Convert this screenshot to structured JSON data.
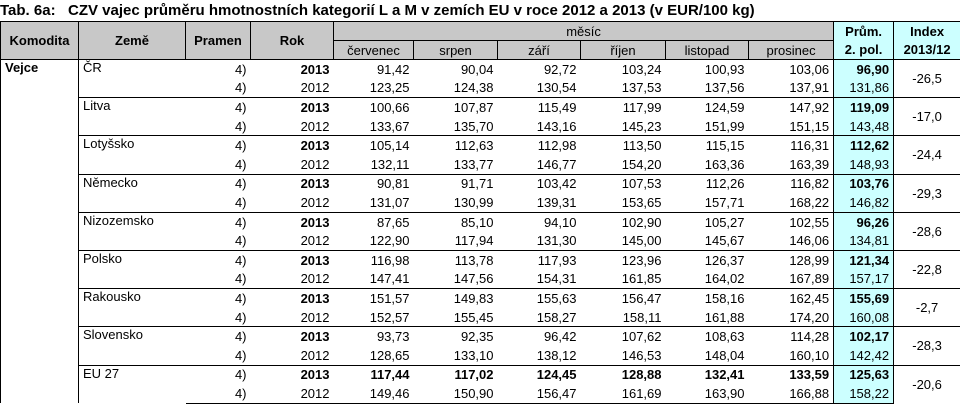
{
  "title": {
    "label": "Tab. 6a:",
    "text": "CZV vajec průměru hmotnostních kategorií L a M v zemích EU v roce 2012 a 2013 (v EUR/100 kg)"
  },
  "header": {
    "komodita": "Komodita",
    "zeme": "Země",
    "pramen": "Pramen",
    "rok": "Rok",
    "mesic": "měsíc",
    "months": [
      "červenec",
      "srpen",
      "září",
      "říjen",
      "listopad",
      "prosinec"
    ],
    "prum": [
      "Prům.",
      "2. pol."
    ],
    "index": [
      "Index",
      "2013/12"
    ]
  },
  "table": {
    "komodita": "Vejce",
    "groups": [
      {
        "country": "ČR",
        "index": "-26,5",
        "rows": [
          {
            "pramen": "4)",
            "rok": "2013",
            "values": [
              "91,42",
              "90,04",
              "92,72",
              "103,24",
              "100,93",
              "103,06"
            ],
            "avg": "96,90"
          },
          {
            "pramen": "4)",
            "rok": "2012",
            "values": [
              "123,25",
              "124,38",
              "130,54",
              "137,53",
              "137,56",
              "137,91"
            ],
            "avg": "131,86"
          }
        ]
      },
      {
        "country": "Litva",
        "index": "-17,0",
        "rows": [
          {
            "pramen": "4)",
            "rok": "2013",
            "values": [
              "100,66",
              "107,87",
              "115,49",
              "117,99",
              "124,59",
              "147,92"
            ],
            "avg": "119,09"
          },
          {
            "pramen": "4)",
            "rok": "2012",
            "values": [
              "133,67",
              "135,70",
              "143,16",
              "145,23",
              "151,99",
              "151,15"
            ],
            "avg": "143,48"
          }
        ]
      },
      {
        "country": "Lotyšsko",
        "index": "-24,4",
        "rows": [
          {
            "pramen": "4)",
            "rok": "2013",
            "values": [
              "105,14",
              "112,63",
              "112,98",
              "113,50",
              "115,15",
              "116,31"
            ],
            "avg": "112,62"
          },
          {
            "pramen": "4)",
            "rok": "2012",
            "values": [
              "132,11",
              "133,77",
              "146,77",
              "154,20",
              "163,36",
              "163,39"
            ],
            "avg": "148,93"
          }
        ]
      },
      {
        "country": "Německo",
        "index": "-29,3",
        "rows": [
          {
            "pramen": "4)",
            "rok": "2013",
            "values": [
              "90,81",
              "91,71",
              "103,42",
              "107,53",
              "112,26",
              "116,82"
            ],
            "avg": "103,76"
          },
          {
            "pramen": "4)",
            "rok": "2012",
            "values": [
              "131,07",
              "130,99",
              "139,31",
              "153,65",
              "157,71",
              "168,22"
            ],
            "avg": "146,82"
          }
        ]
      },
      {
        "country": "Nizozemsko",
        "index": "-28,6",
        "rows": [
          {
            "pramen": "4)",
            "rok": "2013",
            "values": [
              "87,65",
              "85,10",
              "94,10",
              "102,90",
              "105,27",
              "102,55"
            ],
            "avg": "96,26"
          },
          {
            "pramen": "4)",
            "rok": "2012",
            "values": [
              "122,90",
              "117,94",
              "131,30",
              "145,00",
              "145,67",
              "146,06"
            ],
            "avg": "134,81"
          }
        ]
      },
      {
        "country": "Polsko",
        "index": "-22,8",
        "rows": [
          {
            "pramen": "4)",
            "rok": "2013",
            "values": [
              "116,98",
              "113,78",
              "117,93",
              "123,96",
              "126,37",
              "128,99"
            ],
            "avg": "121,34"
          },
          {
            "pramen": "4)",
            "rok": "2012",
            "values": [
              "147,41",
              "147,56",
              "154,31",
              "161,85",
              "164,02",
              "167,89"
            ],
            "avg": "157,17"
          }
        ]
      },
      {
        "country": "Rakousko",
        "index": "-2,7",
        "rows": [
          {
            "pramen": "4)",
            "rok": "2013",
            "values": [
              "151,57",
              "149,83",
              "155,63",
              "156,47",
              "158,16",
              "162,45"
            ],
            "avg": "155,69"
          },
          {
            "pramen": "4)",
            "rok": "2012",
            "values": [
              "152,57",
              "155,45",
              "158,27",
              "158,11",
              "161,88",
              "174,20"
            ],
            "avg": "160,08"
          }
        ]
      },
      {
        "country": "Slovensko",
        "index": "-28,3",
        "rows": [
          {
            "pramen": "4)",
            "rok": "2013",
            "values": [
              "93,73",
              "92,35",
              "96,42",
              "107,62",
              "108,63",
              "114,28"
            ],
            "avg": "102,17"
          },
          {
            "pramen": "4)",
            "rok": "2012",
            "values": [
              "128,65",
              "133,10",
              "138,12",
              "146,53",
              "148,04",
              "160,10"
            ],
            "avg": "142,42"
          }
        ]
      },
      {
        "country": "EU 27",
        "index": "-20,6",
        "bold": true,
        "rows": [
          {
            "pramen": "4)",
            "rok": "2013",
            "values": [
              "117,44",
              "117,02",
              "124,45",
              "128,88",
              "132,41",
              "133,59"
            ],
            "avg": "125,63"
          },
          {
            "pramen": "4)",
            "rok": "2012",
            "values": [
              "149,46",
              "150,90",
              "156,47",
              "161,69",
              "163,90",
              "166,88"
            ],
            "avg": "158,22"
          }
        ]
      }
    ]
  }
}
